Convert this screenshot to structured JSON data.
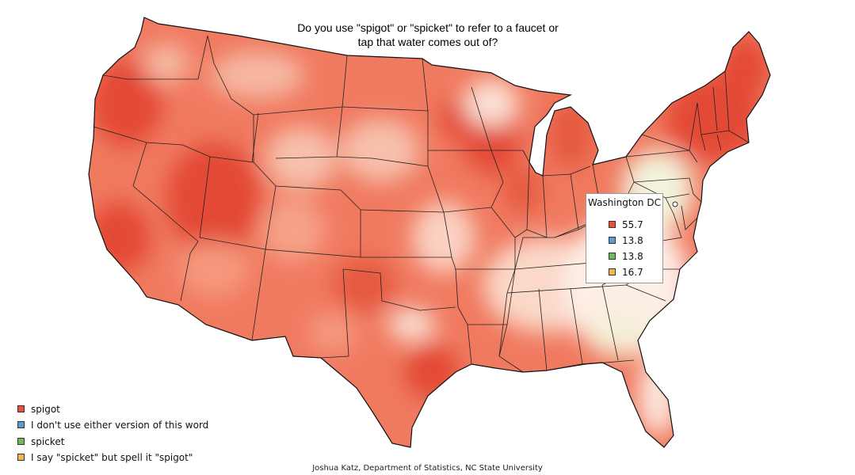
{
  "title_line1": "Do you use \"spigot\" or \"spicket\" to refer to a faucet or",
  "title_line2": "tap that water comes out of?",
  "colors": {
    "spigot": "#e8503a",
    "neither": "#5b9bd5",
    "spicket": "#6fba58",
    "spicket_spelled_spigot": "#f5b54a"
  },
  "legend": [
    {
      "label": "spigot",
      "color": "#e8503a"
    },
    {
      "label": "I don't use either version of this word",
      "color": "#5b9bd5"
    },
    {
      "label": "spicket",
      "color": "#6fba58"
    },
    {
      "label": "I say \"spicket\" but spell it \"spigot\"",
      "color": "#f5b54a"
    }
  ],
  "tooltip": {
    "location": "Washington DC",
    "rows": [
      {
        "value": "55.7",
        "color": "#e8503a"
      },
      {
        "value": "13.8",
        "color": "#5b9bd5"
      },
      {
        "value": "13.8",
        "color": "#6fba58"
      },
      {
        "value": "16.7",
        "color": "#f5b54a"
      }
    ]
  },
  "credit": "Joshua Katz, Department of Statistics, NC State University"
}
